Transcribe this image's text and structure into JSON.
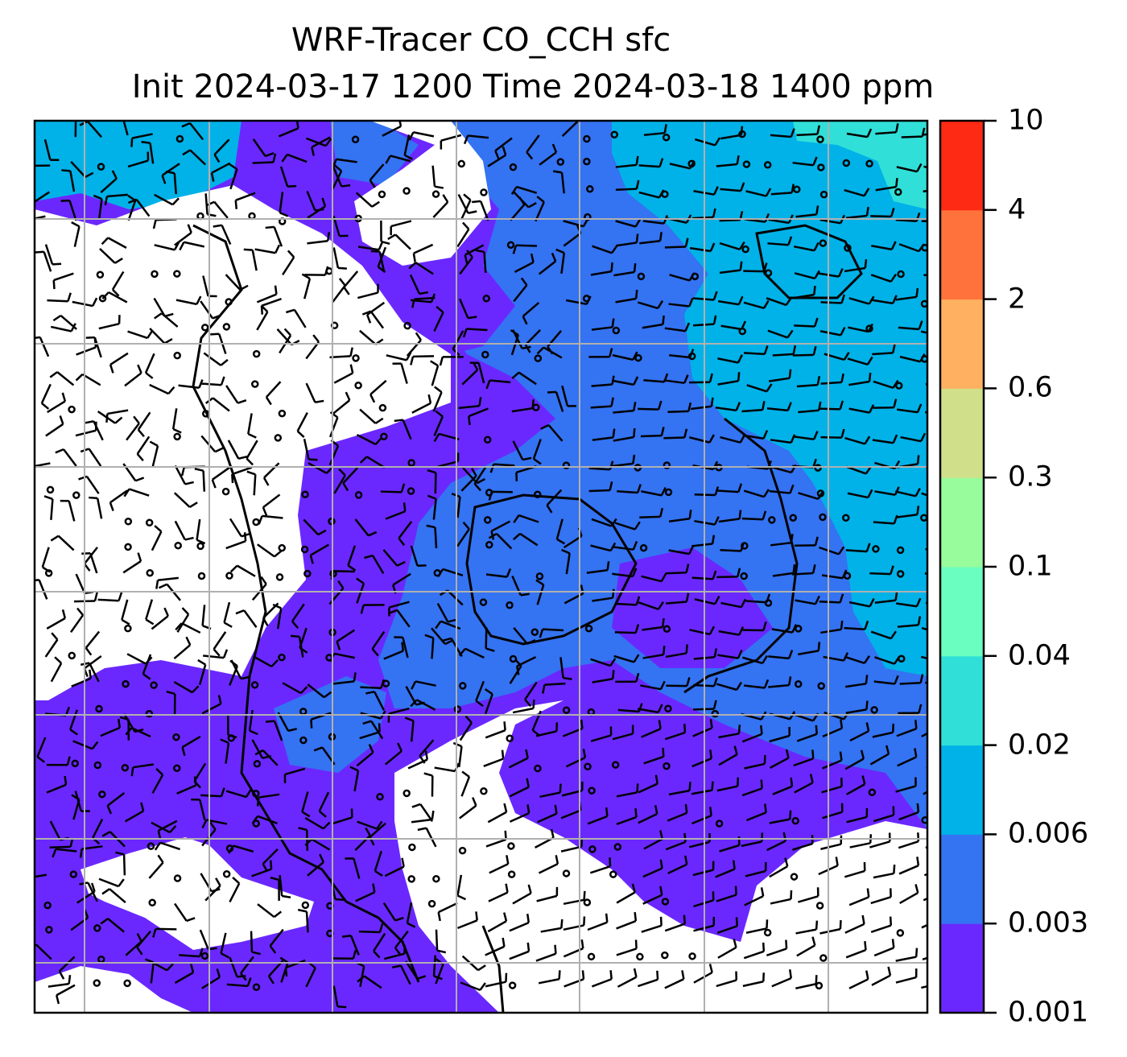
{
  "title": {
    "line1": "WRF-Tracer CO_CCH sfc",
    "line2": "Init 2024-03-17 1200 Time 2024-03-18 1400 ppm"
  },
  "colorbar": {
    "ticks": [
      "0.001",
      "0.003",
      "0.006",
      "0.02",
      "0.04",
      "0.1",
      "0.3",
      "0.6",
      "2",
      "4",
      "10"
    ],
    "colors": [
      "#6a28ff",
      "#3473f2",
      "#00b2e8",
      "#30e0d8",
      "#6affc0",
      "#98fb9c",
      "#d0e08a",
      "#ffb060",
      "#ff723c",
      "#ff2a14"
    ]
  },
  "map": {
    "fill_colors": {
      "lowest": "#6a28ff",
      "low": "#3473f2",
      "mid": "#00b2e8",
      "high": "#30e0d8",
      "below_min": "#ffffff"
    },
    "grid_color": "#b0b0b0",
    "barb_color": "#000000"
  }
}
